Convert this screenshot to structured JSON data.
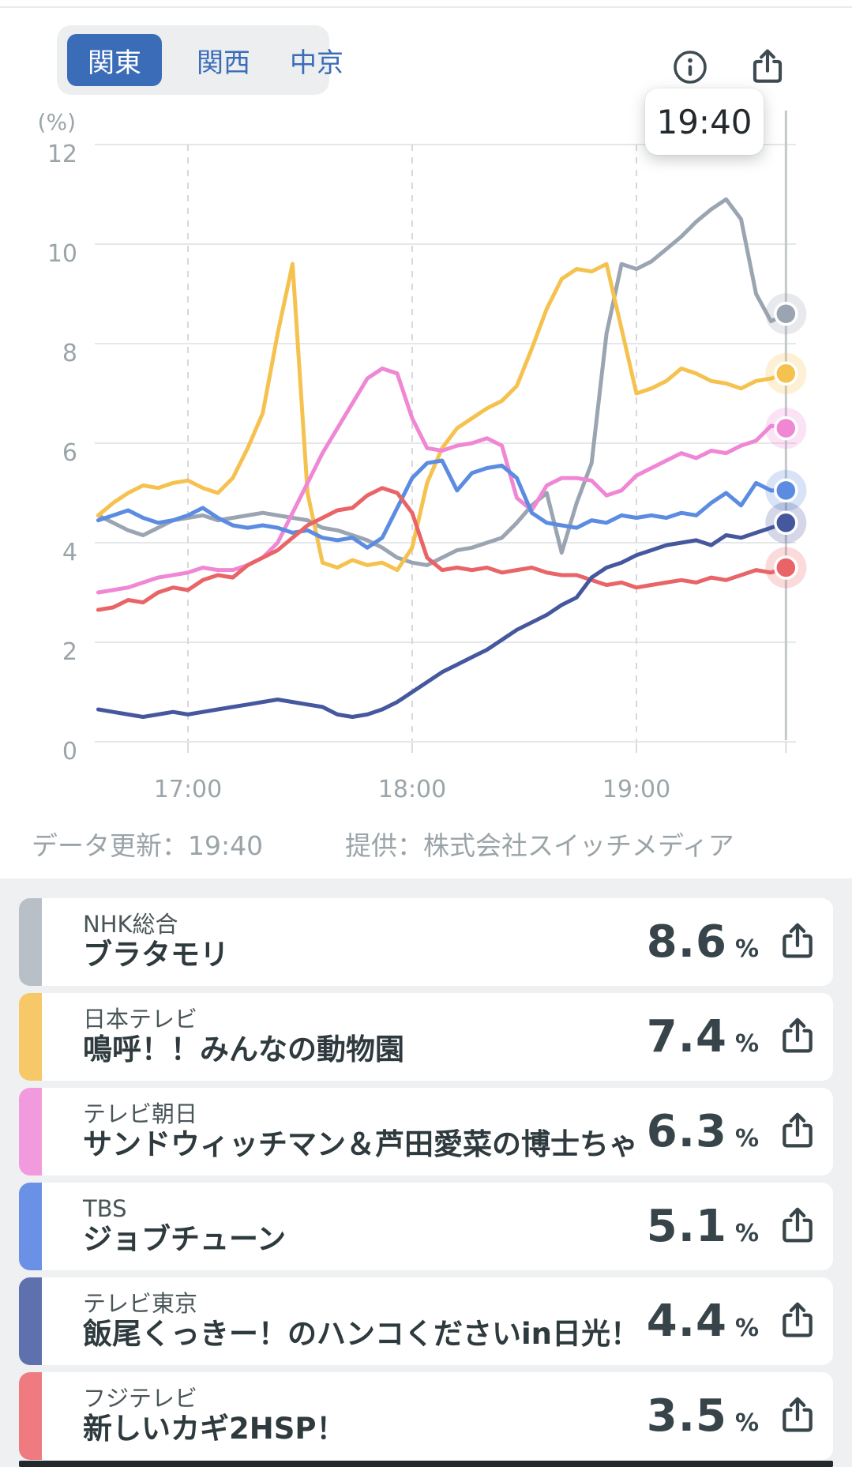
{
  "tabs": {
    "items": [
      {
        "label": "関東",
        "selected": true
      },
      {
        "label": "関西",
        "selected": false
      },
      {
        "label": "中京",
        "selected": false
      }
    ],
    "selected_color": "#3b6cb7"
  },
  "header": {
    "info_icon": "info-circle",
    "share_icon": "share-box-arrow",
    "icon_color": "#3e4c52"
  },
  "tooltip": {
    "time": "19:40"
  },
  "chart_data": {
    "type": "line",
    "ylabel": "(%)",
    "y_ticks": [
      0,
      2,
      4,
      6,
      8,
      10,
      12
    ],
    "ylim": [
      0,
      12
    ],
    "x_ticks": [
      "17:00",
      "18:00",
      "19:00"
    ],
    "x_start": "16:36",
    "x_step_min": 4,
    "cursor_time": "19:40",
    "grid": true,
    "series": [
      {
        "name": "NHK総合",
        "program": "ブラタモリ",
        "color": "#9aa5b1",
        "end_value": 8.6,
        "values": [
          4.55,
          4.4,
          4.25,
          4.15,
          4.3,
          4.45,
          4.5,
          4.55,
          4.45,
          4.5,
          4.55,
          4.6,
          4.55,
          4.5,
          4.45,
          4.3,
          4.25,
          4.15,
          4.05,
          3.9,
          3.7,
          3.6,
          3.55,
          3.7,
          3.85,
          3.9,
          4.0,
          4.1,
          4.4,
          4.75,
          5.0,
          3.8,
          4.8,
          5.6,
          8.2,
          9.6,
          9.5,
          9.65,
          9.9,
          10.15,
          10.45,
          10.7,
          10.9,
          10.5,
          9.0,
          8.45,
          8.6
        ]
      },
      {
        "name": "日本テレビ",
        "program": "鳴呼！！みんなの動物園",
        "color": "#f5c250",
        "end_value": 7.4,
        "values": [
          4.55,
          4.8,
          5.0,
          5.15,
          5.1,
          5.2,
          5.25,
          5.1,
          5.0,
          5.3,
          5.9,
          6.6,
          8.2,
          9.6,
          5.0,
          3.6,
          3.5,
          3.65,
          3.55,
          3.6,
          3.45,
          3.9,
          5.2,
          5.9,
          6.3,
          6.5,
          6.7,
          6.85,
          7.15,
          7.9,
          8.7,
          9.3,
          9.5,
          9.45,
          9.6,
          8.3,
          7.0,
          7.1,
          7.25,
          7.5,
          7.4,
          7.25,
          7.2,
          7.1,
          7.25,
          7.3,
          7.4
        ]
      },
      {
        "name": "テレビ朝日",
        "program": "サンドウィッチマン＆芦田愛菜の博士ちゃ…",
        "color": "#ef87d5",
        "end_value": 6.3,
        "values": [
          3.0,
          3.05,
          3.1,
          3.2,
          3.3,
          3.35,
          3.4,
          3.5,
          3.45,
          3.45,
          3.55,
          3.7,
          4.0,
          4.6,
          5.2,
          5.8,
          6.3,
          6.8,
          7.3,
          7.5,
          7.4,
          6.5,
          5.9,
          5.85,
          5.95,
          6.0,
          6.1,
          5.95,
          4.9,
          4.65,
          5.15,
          5.3,
          5.3,
          5.25,
          4.95,
          5.05,
          5.35,
          5.5,
          5.65,
          5.8,
          5.7,
          5.85,
          5.8,
          5.95,
          6.05,
          6.35,
          6.3
        ]
      },
      {
        "name": "TBS",
        "program": "ジョブチューン",
        "color": "#5b8ce1",
        "end_value": 5.1,
        "values": [
          4.45,
          4.55,
          4.65,
          4.5,
          4.4,
          4.45,
          4.55,
          4.7,
          4.5,
          4.35,
          4.3,
          4.35,
          4.3,
          4.2,
          4.25,
          4.1,
          4.05,
          4.1,
          3.9,
          4.1,
          4.7,
          5.3,
          5.6,
          5.65,
          5.05,
          5.4,
          5.5,
          5.55,
          5.3,
          4.6,
          4.4,
          4.35,
          4.3,
          4.45,
          4.4,
          4.55,
          4.5,
          4.55,
          4.5,
          4.6,
          4.55,
          4.8,
          5.0,
          4.75,
          5.2,
          5.05,
          5.05
        ]
      },
      {
        "name": "フジテレビ",
        "program": "新しいカギ2HSP！",
        "color": "#e96467",
        "end_value": 3.5,
        "values": [
          2.65,
          2.7,
          2.85,
          2.8,
          3.0,
          3.1,
          3.05,
          3.25,
          3.35,
          3.3,
          3.55,
          3.7,
          3.85,
          4.1,
          4.35,
          4.5,
          4.65,
          4.7,
          4.95,
          5.1,
          5.0,
          4.6,
          3.7,
          3.45,
          3.5,
          3.45,
          3.5,
          3.4,
          3.45,
          3.5,
          3.4,
          3.35,
          3.35,
          3.25,
          3.15,
          3.2,
          3.1,
          3.15,
          3.2,
          3.25,
          3.2,
          3.3,
          3.25,
          3.35,
          3.45,
          3.4,
          3.5
        ]
      },
      {
        "name": "テレビ東京",
        "program": "飯尾くっきー！のハンコくださいin日光！",
        "color": "#46589d",
        "end_value": 4.4,
        "values": [
          0.65,
          0.6,
          0.55,
          0.5,
          0.55,
          0.6,
          0.55,
          0.6,
          0.65,
          0.7,
          0.75,
          0.8,
          0.85,
          0.8,
          0.75,
          0.7,
          0.55,
          0.5,
          0.55,
          0.65,
          0.8,
          1.0,
          1.2,
          1.4,
          1.55,
          1.7,
          1.85,
          2.05,
          2.25,
          2.4,
          2.55,
          2.75,
          2.9,
          3.3,
          3.5,
          3.6,
          3.75,
          3.85,
          3.95,
          4.0,
          4.05,
          3.95,
          4.15,
          4.1,
          4.2,
          4.3,
          4.4
        ]
      }
    ]
  },
  "footer": {
    "updated": "データ更新：19:40",
    "provider": "提供：株式会社スイッチメディア"
  },
  "list": {
    "rows": [
      {
        "channel": "NHK総合",
        "program": "ブラタモリ",
        "value": "8.6",
        "unit": "%",
        "color": "#b8bfc7"
      },
      {
        "channel": "日本テレビ",
        "program": "鳴呼！！みんなの動物園",
        "value": "7.4",
        "unit": "%",
        "color": "#f6c867"
      },
      {
        "channel": "テレビ朝日",
        "program": "サンドウィッチマン＆芦田愛菜の博士ちゃ…",
        "value": "6.3",
        "unit": "%",
        "color": "#f29ade"
      },
      {
        "channel": "TBS",
        "program": "ジョブチューン",
        "value": "5.1",
        "unit": "%",
        "color": "#6b91e6"
      },
      {
        "channel": "テレビ東京",
        "program": "飯尾くっきー！のハンコくださいin日光！",
        "value": "4.4",
        "unit": "%",
        "color": "#5e70ad"
      },
      {
        "channel": "フジテレビ",
        "program": "新しいカギ2HSP！",
        "value": "3.5",
        "unit": "%",
        "color": "#ef7a7f"
      }
    ]
  }
}
